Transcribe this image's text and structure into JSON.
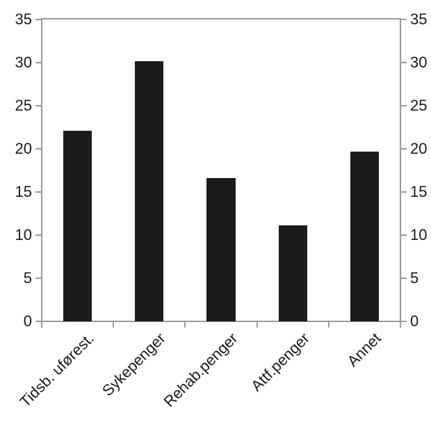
{
  "chart_data": {
    "type": "bar",
    "title": "",
    "xlabel": "",
    "ylabel": "",
    "categories": [
      "Tidsb. uførest.",
      "Sykepenger",
      "Rehab.penger",
      "Attf.penger",
      "Annet"
    ],
    "values": [
      22.1,
      30.2,
      16.6,
      11.1,
      19.7
    ],
    "ylim": [
      0,
      35
    ],
    "yticks": [
      0,
      5,
      10,
      15,
      20,
      25,
      30,
      35
    ],
    "y_axis_sides": [
      "left",
      "right"
    ],
    "x_tick_position": "category-boundaries",
    "x_label_rotation_deg": 45,
    "grid": false,
    "legend_position": "none",
    "bar_color": "#1b1b1b",
    "axis_color": "#999999",
    "label_color": "#1a1a1a",
    "background_color": "#ffffff"
  }
}
